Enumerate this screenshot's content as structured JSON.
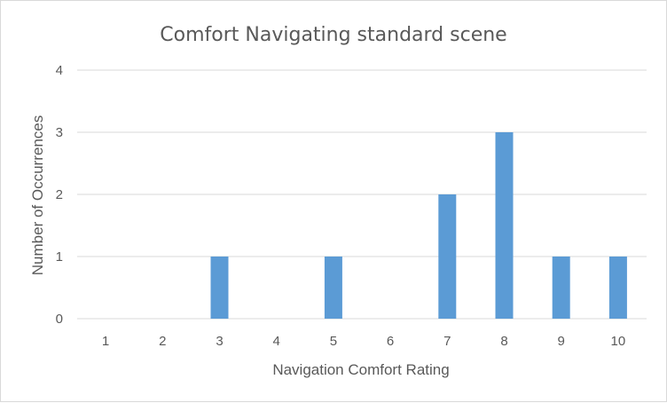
{
  "chart_data": {
    "type": "bar",
    "title": "Comfort Navigating standard scene",
    "xlabel": "Navigation Comfort Rating",
    "ylabel": "Number of Occurrences",
    "categories": [
      "1",
      "2",
      "3",
      "4",
      "5",
      "6",
      "7",
      "8",
      "9",
      "10"
    ],
    "values": [
      0,
      0,
      1,
      0,
      1,
      0,
      2,
      3,
      1,
      1
    ],
    "ylim": [
      0,
      4
    ],
    "yticks": [
      "0",
      "1",
      "2",
      "3",
      "4"
    ],
    "grid": true,
    "legend": "none",
    "bar_color": "#5b9bd5",
    "grid_color": "#d9d9d9",
    "text_color": "#595959"
  }
}
